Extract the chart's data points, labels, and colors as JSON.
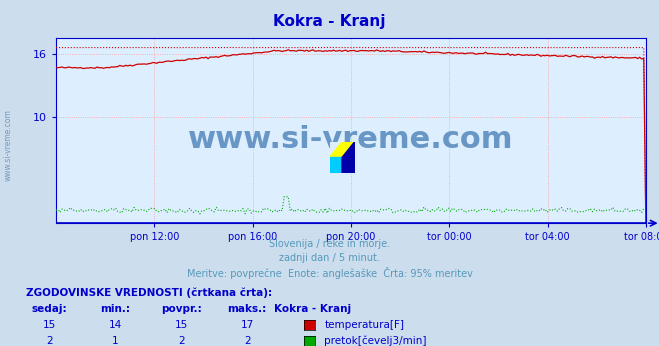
{
  "title": "Kokra - Kranj",
  "title_color": "#0000cc",
  "bg_color": "#ccdded",
  "plot_bg_color": "#ddeeff",
  "watermark_text": "www.si-vreme.com",
  "watermark_color": "#5588bb",
  "subtitle_lines": [
    "Slovenija / reke in morje.",
    "zadnji dan / 5 minut.",
    "Meritve: povprečne  Enote: anglešaške  Črta: 95% meritev"
  ],
  "subtitle_color": "#5599bb",
  "ylabel_color": "#336699",
  "xlabel_color": "#336699",
  "axis_color": "#0000cc",
  "grid_color": "#ff9999",
  "x_tick_labels": [
    "pon 12:00",
    "pon 16:00",
    "pon 20:00",
    "tor 00:00",
    "tor 04:00",
    "tor 08:00"
  ],
  "x_tick_positions": [
    4,
    8,
    12,
    16,
    20,
    24
  ],
  "y_ticks": [
    10,
    16
  ],
  "y_lim": [
    0,
    17.5
  ],
  "x_lim": [
    0,
    24
  ],
  "temp_color": "#cc0000",
  "flow_color": "#00aa00",
  "table_header": "ZGODOVINSKE VREDNOSTI (črtkana črta):",
  "table_cols": [
    "sedaj:",
    "min.:",
    "povpr.:",
    "maks.:",
    "Kokra - Kranj"
  ],
  "table_rows": [
    {
      "values": [
        "15",
        "14",
        "15",
        "17"
      ],
      "label": "temperatura[F]",
      "color": "#cc0000"
    },
    {
      "values": [
        "2",
        "1",
        "2",
        "2"
      ],
      "label": "pretok[čevelj3/min]",
      "color": "#00aa00"
    }
  ],
  "table_color": "#0000cc",
  "watermark_logo_colors": [
    "#ffff00",
    "#00ccff",
    "#0000aa"
  ],
  "sidebar_text": "www.si-vreme.com",
  "sidebar_color": "#7799bb"
}
